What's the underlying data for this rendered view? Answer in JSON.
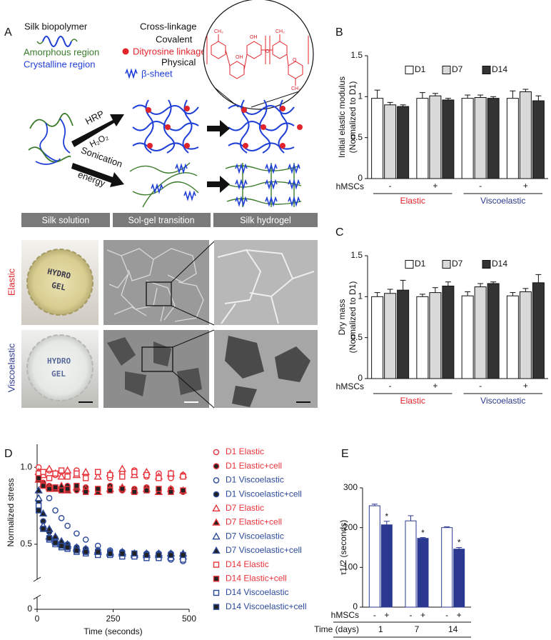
{
  "panel_a": {
    "label": "A",
    "key": {
      "silk": "Silk biopolymer",
      "amorphous": "Amorphous region",
      "crystalline": "Crystalline region",
      "crosslinkage": "Cross-linkage",
      "covalent": "Covalent",
      "dityrosine": "Dityrosine linkage",
      "physical": "Physical",
      "beta_sheet": "β-sheet"
    },
    "chem": {
      "ch2": "CH₂",
      "oh": "OH",
      "o": "O"
    },
    "routes": {
      "hrp": "HRP",
      "h2o2": "H₂O₂",
      "sonication": "Sonication",
      "energy": "energy"
    },
    "stages": [
      "Silk solution",
      "Sol-gel transition",
      "Silk hydrogel"
    ],
    "rows": [
      {
        "name": "Elastic",
        "color": "#e0242b"
      },
      {
        "name": "Viscoelastic",
        "color": "#2c3a8f"
      }
    ],
    "photo_text": [
      "HYDRO",
      "GEL"
    ]
  },
  "chart_data": [
    {
      "type": "bar",
      "label": "B",
      "ylabel": [
        "Initial elastic modulus",
        "(Normalized to D1)"
      ],
      "row_label": "hMSCs",
      "categories": [
        "-",
        "+",
        "-",
        "+"
      ],
      "groups": [
        {
          "name": "Elastic",
          "color": "#e0242b"
        },
        {
          "name": "Viscoelastic",
          "color": "#2c3a8f"
        }
      ],
      "ylim": [
        0,
        1.5
      ],
      "yticks": [
        0,
        0.5,
        1,
        1.5
      ],
      "series": [
        {
          "name": "D1",
          "color": "#ffffff",
          "values": [
            0.98,
            0.98,
            0.98,
            0.98
          ],
          "errors": [
            0.1,
            0.07,
            0.04,
            0.09
          ]
        },
        {
          "name": "D7",
          "color": "#d9d9d9",
          "values": [
            0.9,
            1.01,
            0.99,
            1.06
          ],
          "errors": [
            0.03,
            0.03,
            0.03,
            0.03
          ]
        },
        {
          "name": "D14",
          "color": "#333333",
          "values": [
            0.88,
            0.96,
            0.98,
            0.95
          ],
          "errors": [
            0.02,
            0.02,
            0.02,
            0.06
          ]
        }
      ]
    },
    {
      "type": "bar",
      "label": "C",
      "ylabel": [
        "Dry mass",
        "(Normalized to D1)"
      ],
      "row_label": "hMSCs",
      "categories": [
        "-",
        "+",
        "-",
        "+"
      ],
      "groups": [
        {
          "name": "Elastic",
          "color": "#e0242b"
        },
        {
          "name": "Viscoelastic",
          "color": "#2c3a8f"
        }
      ],
      "ylim": [
        0,
        1.5
      ],
      "yticks": [
        0,
        0.5,
        1,
        1.5
      ],
      "series": [
        {
          "name": "D1",
          "color": "#ffffff",
          "values": [
            1.0,
            1.0,
            1.01,
            1.01
          ],
          "errors": [
            0.05,
            0.03,
            0.05,
            0.04
          ]
        },
        {
          "name": "D7",
          "color": "#d9d9d9",
          "values": [
            1.04,
            1.05,
            1.12,
            1.06
          ],
          "errors": [
            0.05,
            0.06,
            0.04,
            0.04
          ]
        },
        {
          "name": "D14",
          "color": "#333333",
          "values": [
            1.08,
            1.13,
            1.16,
            1.17
          ],
          "errors": [
            0.12,
            0.05,
            0.02,
            0.1
          ]
        }
      ]
    },
    {
      "type": "scatter",
      "label": "D",
      "ylabel": "Normalized stress",
      "xlabel": "Time (seconds)",
      "x": [
        5,
        20,
        40,
        60,
        80,
        100,
        130,
        160,
        200,
        240,
        280,
        320,
        360,
        400,
        440,
        480
      ],
      "xlim": [
        0,
        500
      ],
      "xticks": [
        0,
        250,
        500
      ],
      "ylim": [
        0,
        1.15
      ],
      "yticks": [
        0,
        0.5,
        {
          "value": 1,
          "label": "1.0"
        }
      ],
      "axis_break": [
        0.1,
        0.3
      ],
      "series": [
        {
          "name": "D1 Elastic",
          "color": "#e8333a",
          "marker": "circle",
          "filled": false,
          "values": [
            1.0,
            0.96,
            0.98,
            0.95,
            0.97,
            0.94,
            0.98,
            0.95,
            0.97,
            0.93,
            0.96,
            0.98,
            0.94,
            0.96,
            0.93,
            0.95
          ]
        },
        {
          "name": "D1 Elastic+cell",
          "color": "#e8333a",
          "marker": "circle",
          "filled": true,
          "values": [
            0.94,
            0.9,
            0.88,
            0.87,
            0.86,
            0.88,
            0.85,
            0.87,
            0.86,
            0.88,
            0.85,
            0.86,
            0.87,
            0.85,
            0.86,
            0.84
          ]
        },
        {
          "name": "D1 Viscoelastic",
          "color": "#2c4a9a",
          "marker": "circle",
          "filled": false,
          "values": [
            0.95,
            0.88,
            0.8,
            0.72,
            0.67,
            0.62,
            0.57,
            0.53,
            0.49,
            0.46,
            0.45,
            0.43,
            0.42,
            0.41,
            0.4,
            0.39
          ]
        },
        {
          "name": "D1 Viscoelastic+cell",
          "color": "#2c4a9a",
          "marker": "circle",
          "filled": true,
          "values": [
            0.78,
            0.65,
            0.58,
            0.54,
            0.51,
            0.5,
            0.48,
            0.47,
            0.46,
            0.45,
            0.45,
            0.44,
            0.44,
            0.44,
            0.44,
            0.43
          ]
        },
        {
          "name": "D7 Elastic",
          "color": "#e8333a",
          "marker": "triangle",
          "filled": false,
          "values": [
            0.97,
            0.95,
            0.99,
            0.96,
            0.94,
            0.98,
            0.95,
            0.97,
            0.94,
            0.96,
            0.99,
            0.95,
            0.97,
            0.94,
            0.96,
            0.95
          ]
        },
        {
          "name": "D7 Elastic+cell",
          "color": "#e8333a",
          "marker": "triangle",
          "filled": true,
          "values": [
            0.92,
            0.89,
            0.87,
            0.86,
            0.88,
            0.85,
            0.87,
            0.86,
            0.84,
            0.86,
            0.87,
            0.85,
            0.86,
            0.84,
            0.86,
            0.85
          ]
        },
        {
          "name": "D7 Viscoelastic",
          "color": "#2c4a9a",
          "marker": "triangle",
          "filled": false,
          "values": [
            0.8,
            0.62,
            0.55,
            0.52,
            0.5,
            0.49,
            0.47,
            0.46,
            0.45,
            0.44,
            0.44,
            0.43,
            0.43,
            0.43,
            0.42,
            0.42
          ]
        },
        {
          "name": "D7 Viscoelastic+cell",
          "color": "#2c4a9a",
          "marker": "triangle",
          "filled": true,
          "values": [
            0.85,
            0.7,
            0.6,
            0.55,
            0.52,
            0.5,
            0.48,
            0.47,
            0.46,
            0.45,
            0.45,
            0.44,
            0.44,
            0.44,
            0.44,
            0.44
          ]
        },
        {
          "name": "D14 Elastic",
          "color": "#e8333a",
          "marker": "square",
          "filled": false,
          "values": [
            0.96,
            0.97,
            0.93,
            0.96,
            0.98,
            0.94,
            0.96,
            0.93,
            0.97,
            0.95,
            0.94,
            0.97,
            0.95,
            0.93,
            0.96,
            0.94
          ]
        },
        {
          "name": "D14 Elastic+cell",
          "color": "#e8333a",
          "marker": "square",
          "filled": true,
          "values": [
            0.93,
            0.88,
            0.86,
            0.87,
            0.85,
            0.86,
            0.88,
            0.84,
            0.86,
            0.85,
            0.86,
            0.84,
            0.85,
            0.86,
            0.84,
            0.85
          ]
        },
        {
          "name": "D14 Viscoelastic",
          "color": "#2c4a9a",
          "marker": "square",
          "filled": false,
          "values": [
            0.75,
            0.6,
            0.53,
            0.5,
            0.48,
            0.47,
            0.45,
            0.44,
            0.43,
            0.43,
            0.42,
            0.42,
            0.41,
            0.41,
            0.41,
            0.4
          ]
        },
        {
          "name": "D14 Viscoelastic+cell",
          "color": "#2c4a9a",
          "marker": "square",
          "filled": true,
          "values": [
            0.72,
            0.6,
            0.54,
            0.51,
            0.49,
            0.48,
            0.46,
            0.45,
            0.45,
            0.44,
            0.44,
            0.44,
            0.43,
            0.43,
            0.43,
            0.43
          ]
        }
      ]
    },
    {
      "type": "bar",
      "label": "E",
      "ylabel": "τ1/2 (seconds)",
      "row_label": "hMSCs",
      "xlabel": "Time (days)",
      "categories": [
        "1",
        "7",
        "14"
      ],
      "ylim": [
        0,
        300
      ],
      "yticks": [
        0,
        100,
        200,
        300
      ],
      "series": [
        {
          "name": "-",
          "color": "#ffffff",
          "edge": "#2b3990",
          "values": [
            255,
            217,
            200
          ],
          "errors": [
            4,
            13,
            2
          ]
        },
        {
          "name": "+",
          "color": "#2b3990",
          "edge": "#2b3990",
          "values": [
            207,
            173,
            146
          ],
          "errors": [
            9,
            2,
            4
          ],
          "marks": [
            "*",
            "*",
            "*"
          ]
        }
      ]
    }
  ]
}
